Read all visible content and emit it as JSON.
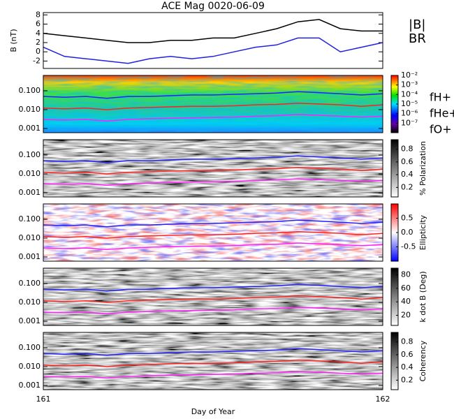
{
  "chart_data": [
    {
      "type": "line",
      "title": "ACE Mag 0020-06-09",
      "ylabel": "B (nT)",
      "x": [
        161,
        161.0625,
        161.125,
        161.1875,
        161.25,
        161.3125,
        161.375,
        161.4375,
        161.5,
        161.5625,
        161.625,
        161.6875,
        161.75,
        161.8125,
        161.875,
        161.9375,
        162
      ],
      "xlim": [
        161,
        162
      ],
      "ylim": [
        -3.6,
        8.5
      ],
      "yticks": [
        -2,
        0,
        2,
        4,
        6,
        8
      ],
      "series": [
        {
          "name": "|B|",
          "color": "#000000",
          "values": [
            4,
            3.5,
            3,
            2.5,
            2,
            2,
            2.5,
            2.5,
            3,
            3,
            4,
            5,
            6.5,
            7,
            5,
            4.5,
            4.5
          ]
        },
        {
          "name": "BR",
          "color": "#2020e0",
          "values": [
            1,
            -1,
            -1.5,
            -2,
            -2.5,
            -1.5,
            -1,
            -1.5,
            -1,
            0,
            1,
            1.5,
            3,
            3,
            0,
            1,
            2
          ]
        }
      ]
    },
    {
      "type": "line",
      "ylog": true,
      "x": [
        161,
        161.0625,
        161.125,
        161.1875,
        161.25,
        161.3125,
        161.375,
        161.4375,
        161.5,
        161.5625,
        161.625,
        161.6875,
        161.75,
        161.8125,
        161.875,
        161.9375,
        162
      ],
      "xlim": [
        161,
        162
      ],
      "ylim": [
        0.0006,
        0.65
      ],
      "yticks": [
        0.001,
        {
          "value": 0.01,
          "label": "0.010"
        },
        {
          "value": 0.1,
          "label": "0.100"
        }
      ],
      "clog": true,
      "clim": [
        1e-08,
        0.01
      ],
      "cticks": [
        {
          "value": 1e-07,
          "label": "10⁻⁷"
        },
        {
          "value": 1e-06,
          "label": "10⁻⁶"
        },
        {
          "value": 1e-05,
          "label": "10⁻⁵"
        },
        {
          "value": 0.0001,
          "label": "10⁻⁴"
        },
        {
          "value": 0.001,
          "label": "10⁻³"
        },
        {
          "value": 0.01,
          "label": "10⁻²"
        }
      ],
      "series": [
        {
          "name": "fH+",
          "color": "#2020ff",
          "values": [
            0.05,
            0.045,
            0.05,
            0.04,
            0.05,
            0.05,
            0.055,
            0.06,
            0.06,
            0.065,
            0.07,
            0.075,
            0.09,
            0.08,
            0.07,
            0.06,
            0.07
          ]
        },
        {
          "name": "fHe+",
          "color": "#ff2020",
          "values": [
            0.012,
            0.011,
            0.012,
            0.01,
            0.012,
            0.013,
            0.014,
            0.015,
            0.015,
            0.016,
            0.018,
            0.019,
            0.022,
            0.02,
            0.018,
            0.015,
            0.018
          ]
        },
        {
          "name": "fO+",
          "color": "#ff20ff",
          "values": [
            0.003,
            0.0028,
            0.003,
            0.0025,
            0.003,
            0.0033,
            0.0035,
            0.0037,
            0.0038,
            0.004,
            0.0045,
            0.0047,
            0.0055,
            0.005,
            0.0045,
            0.004,
            0.0045
          ]
        }
      ]
    },
    {
      "type": "line",
      "ylog": true,
      "x": [
        161,
        161.0625,
        161.125,
        161.1875,
        161.25,
        161.3125,
        161.375,
        161.4375,
        161.5,
        161.5625,
        161.625,
        161.6875,
        161.75,
        161.8125,
        161.875,
        161.9375,
        162
      ],
      "xlim": [
        161,
        162
      ],
      "ylim": [
        0.0006,
        0.65
      ],
      "yticks": [
        0.001,
        {
          "value": 0.01,
          "label": "0.010"
        },
        {
          "value": 0.1,
          "label": "0.100"
        }
      ],
      "colorbar_label": "% Polarization",
      "clim": [
        0.05,
        0.95
      ],
      "cticks": [
        0.2,
        0.4,
        0.6,
        0.8
      ],
      "series": [
        {
          "color": "#2020ff",
          "values": [
            0.05,
            0.045,
            0.05,
            0.04,
            0.05,
            0.05,
            0.055,
            0.06,
            0.06,
            0.065,
            0.07,
            0.075,
            0.09,
            0.08,
            0.07,
            0.06,
            0.07
          ]
        },
        {
          "color": "#ff2020",
          "values": [
            0.012,
            0.011,
            0.012,
            0.01,
            0.012,
            0.013,
            0.014,
            0.015,
            0.015,
            0.016,
            0.018,
            0.019,
            0.022,
            0.02,
            0.018,
            0.015,
            0.018
          ]
        },
        {
          "color": "#ff20ff",
          "values": [
            0.003,
            0.0028,
            0.003,
            0.0025,
            0.003,
            0.0033,
            0.0035,
            0.0037,
            0.0038,
            0.004,
            0.0045,
            0.0047,
            0.0055,
            0.005,
            0.0045,
            0.004,
            0.0045
          ]
        }
      ]
    },
    {
      "type": "line",
      "ylog": true,
      "x": [
        161,
        161.0625,
        161.125,
        161.1875,
        161.25,
        161.3125,
        161.375,
        161.4375,
        161.5,
        161.5625,
        161.625,
        161.6875,
        161.75,
        161.8125,
        161.875,
        161.9375,
        162
      ],
      "xlim": [
        161,
        162
      ],
      "ylim": [
        0.0006,
        0.65
      ],
      "yticks": [
        0.001,
        {
          "value": 0.01,
          "label": "0.010"
        },
        {
          "value": 0.1,
          "label": "0.100"
        }
      ],
      "colorbar_label": "Ellipticity",
      "clim": [
        -1,
        1
      ],
      "cticks": [
        -0.5,
        {
          "value": 0,
          "label": "0.0"
        },
        0.5
      ],
      "series": [
        {
          "color": "#2020ff",
          "values": [
            0.05,
            0.045,
            0.05,
            0.04,
            0.05,
            0.05,
            0.055,
            0.06,
            0.06,
            0.065,
            0.07,
            0.075,
            0.09,
            0.08,
            0.07,
            0.06,
            0.07
          ]
        },
        {
          "color": "#ff2020",
          "values": [
            0.012,
            0.011,
            0.012,
            0.01,
            0.012,
            0.013,
            0.014,
            0.015,
            0.015,
            0.016,
            0.018,
            0.019,
            0.022,
            0.02,
            0.018,
            0.015,
            0.018
          ]
        },
        {
          "color": "#ff20ff",
          "values": [
            0.003,
            0.0028,
            0.003,
            0.0025,
            0.003,
            0.0033,
            0.0035,
            0.0037,
            0.0038,
            0.004,
            0.0045,
            0.0047,
            0.0055,
            0.005,
            0.0045,
            0.004,
            0.0045
          ]
        }
      ]
    },
    {
      "type": "line",
      "ylog": true,
      "x": [
        161,
        161.0625,
        161.125,
        161.1875,
        161.25,
        161.3125,
        161.375,
        161.4375,
        161.5,
        161.5625,
        161.625,
        161.6875,
        161.75,
        161.8125,
        161.875,
        161.9375,
        162
      ],
      "xlim": [
        161,
        162
      ],
      "ylim": [
        0.0006,
        0.65
      ],
      "yticks": [
        0.001,
        {
          "value": 0.01,
          "label": "0.010"
        },
        {
          "value": 0.1,
          "label": "0.100"
        }
      ],
      "colorbar_label": "k dot B (Deg)",
      "clim": [
        5,
        90
      ],
      "cticks": [
        20,
        40,
        60,
        80
      ],
      "series": [
        {
          "color": "#2020ff",
          "values": [
            0.05,
            0.045,
            0.05,
            0.04,
            0.05,
            0.05,
            0.055,
            0.06,
            0.06,
            0.065,
            0.07,
            0.075,
            0.09,
            0.08,
            0.07,
            0.06,
            0.07
          ]
        },
        {
          "color": "#ff2020",
          "values": [
            0.012,
            0.011,
            0.012,
            0.01,
            0.012,
            0.013,
            0.014,
            0.015,
            0.015,
            0.016,
            0.018,
            0.019,
            0.022,
            0.02,
            0.018,
            0.015,
            0.018
          ]
        },
        {
          "color": "#ff20ff",
          "values": [
            0.003,
            0.0028,
            0.003,
            0.0025,
            0.003,
            0.0033,
            0.0035,
            0.0037,
            0.0038,
            0.004,
            0.0045,
            0.0047,
            0.0055,
            0.005,
            0.0045,
            0.004,
            0.0045
          ]
        }
      ]
    },
    {
      "type": "line",
      "ylog": true,
      "xlabel": "Day of Year",
      "x": [
        161,
        161.0625,
        161.125,
        161.1875,
        161.25,
        161.3125,
        161.375,
        161.4375,
        161.5,
        161.5625,
        161.625,
        161.6875,
        161.75,
        161.8125,
        161.875,
        161.9375,
        162
      ],
      "xlim": [
        161,
        162
      ],
      "xticks": [
        161,
        162
      ],
      "ylim": [
        0.0006,
        0.65
      ],
      "yticks": [
        0.001,
        {
          "value": 0.01,
          "label": "0.010"
        },
        {
          "value": 0.1,
          "label": "0.100"
        }
      ],
      "colorbar_label": "Coherency",
      "clim": [
        0.05,
        0.95
      ],
      "cticks": [
        0.2,
        0.4,
        0.6,
        0.8
      ],
      "series": [
        {
          "color": "#2020ff",
          "values": [
            0.05,
            0.045,
            0.05,
            0.04,
            0.05,
            0.05,
            0.055,
            0.06,
            0.06,
            0.065,
            0.07,
            0.075,
            0.09,
            0.08,
            0.07,
            0.06,
            0.07
          ]
        },
        {
          "color": "#ff2020",
          "values": [
            0.012,
            0.011,
            0.012,
            0.01,
            0.012,
            0.013,
            0.014,
            0.015,
            0.015,
            0.016,
            0.018,
            0.019,
            0.022,
            0.02,
            0.018,
            0.015,
            0.018
          ]
        },
        {
          "color": "#ff20ff",
          "values": [
            0.003,
            0.0028,
            0.003,
            0.0025,
            0.003,
            0.0033,
            0.0035,
            0.0037,
            0.0038,
            0.004,
            0.0045,
            0.0047,
            0.0055,
            0.005,
            0.0045,
            0.004,
            0.0045
          ]
        }
      ]
    }
  ]
}
